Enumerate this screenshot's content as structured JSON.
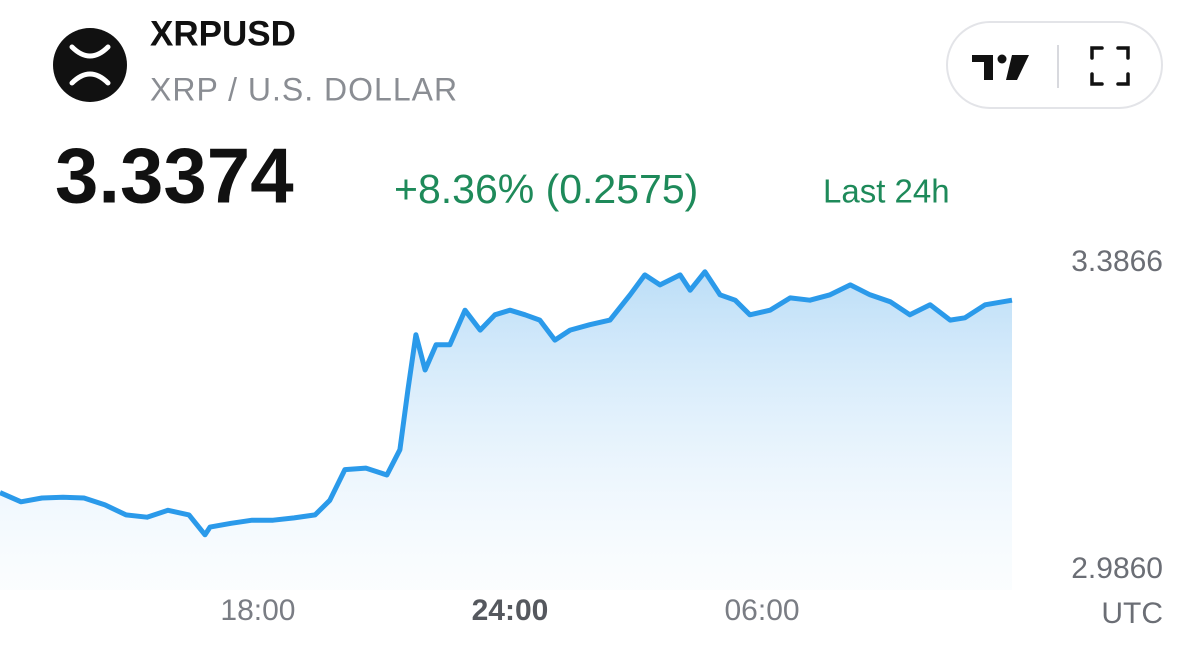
{
  "header": {
    "symbol": "XRPUSD",
    "name": "XRP / U.S. DOLLAR",
    "price": "3.3374",
    "change": "+8.36% (0.2575)",
    "period": "Last 24h"
  },
  "chart_data": {
    "type": "area",
    "series": [
      {
        "color": "#2b9aea",
        "x": [
          11.86,
          12.36,
          12.86,
          13.36,
          13.86,
          14.36,
          14.86,
          15.36,
          15.86,
          16.36,
          16.74,
          16.86,
          17.36,
          17.86,
          18.36,
          18.86,
          19.36,
          19.71,
          20.07,
          20.57,
          21.07,
          21.38,
          21.57,
          21.76,
          21.98,
          22.24,
          22.57,
          22.93,
          23.29,
          23.64,
          24.0,
          24.36,
          24.71,
          25.07,
          25.43,
          25.9,
          26.38,
          26.86,
          27.21,
          27.57,
          28.05,
          28.29,
          28.64,
          29.0,
          29.36,
          29.71,
          30.19,
          30.67,
          31.14,
          31.62,
          32.1,
          32.57,
          33.05,
          33.52,
          34.0,
          34.48,
          34.83,
          35.31,
          35.95
        ],
        "values": [
          3.087,
          3.075,
          3.08,
          3.081,
          3.08,
          3.071,
          3.058,
          3.055,
          3.064,
          3.058,
          3.032,
          3.042,
          3.047,
          3.051,
          3.051,
          3.054,
          3.058,
          3.077,
          3.117,
          3.119,
          3.11,
          3.143,
          3.221,
          3.293,
          3.247,
          3.28,
          3.28,
          3.325,
          3.299,
          3.319,
          3.325,
          3.319,
          3.312,
          3.286,
          3.299,
          3.306,
          3.312,
          3.345,
          3.371,
          3.358,
          3.371,
          3.351,
          3.375,
          3.345,
          3.338,
          3.319,
          3.325,
          3.341,
          3.338,
          3.345,
          3.358,
          3.345,
          3.336,
          3.319,
          3.332,
          3.312,
          3.315,
          3.332,
          3.338
        ]
      }
    ],
    "xlim": [
      11.86,
      35.95
    ],
    "xticks": [
      {
        "value": 18,
        "label": "18:00"
      },
      {
        "value": 24,
        "label": "24:00"
      },
      {
        "value": 30,
        "label": "06:00"
      }
    ],
    "ylim": [
      2.96,
      3.41
    ],
    "yticks": [
      {
        "value": 2.986,
        "label": "2.9860"
      },
      {
        "value": 3.3866,
        "label": "3.3866"
      }
    ],
    "x_unit_label": "UTC"
  }
}
